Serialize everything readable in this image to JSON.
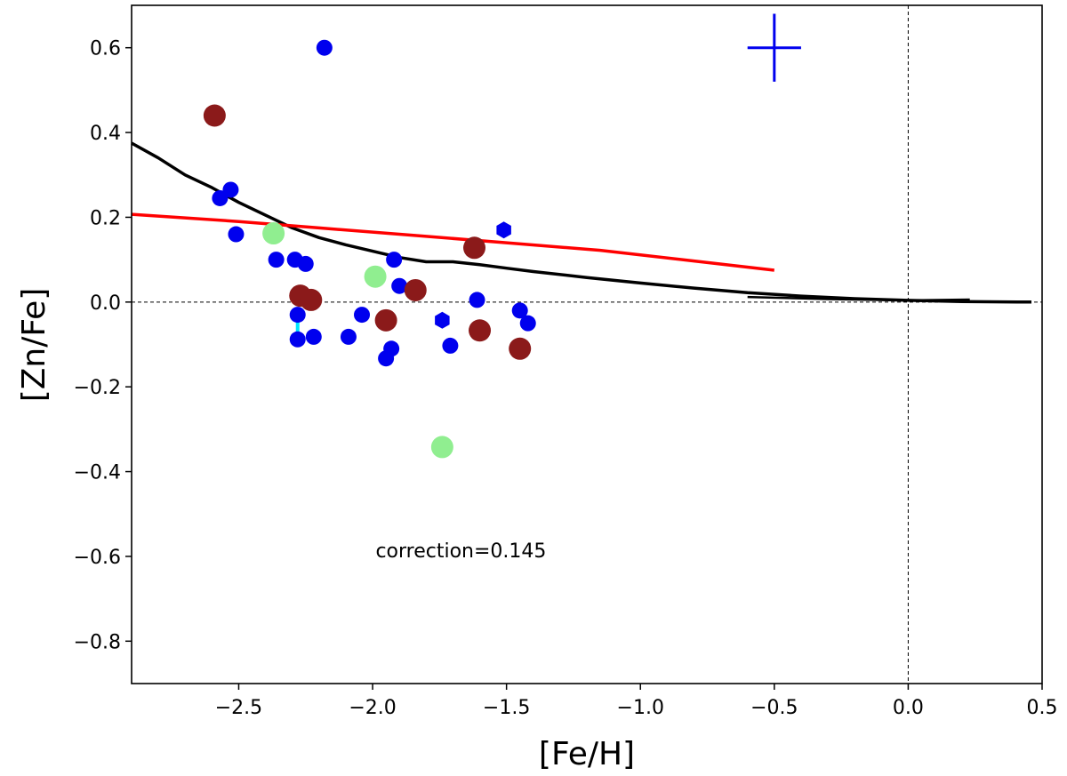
{
  "chart_data": {
    "type": "scatter",
    "xlabel": "[Fe/H]",
    "ylabel": "[Zn/Fe]",
    "xlim": [
      -2.9,
      0.5
    ],
    "ylim": [
      -0.9,
      0.7
    ],
    "xticks": [
      -2.5,
      -2.0,
      -1.5,
      -1.0,
      -0.5,
      0.0,
      0.5
    ],
    "xtick_labels": [
      "−2.5",
      "−2.0",
      "−1.5",
      "−1.0",
      "−0.5",
      "0.0",
      "0.5"
    ],
    "yticks": [
      0.6,
      0.4,
      0.2,
      0.0,
      -0.2,
      -0.4,
      -0.6,
      -0.8
    ],
    "ytick_labels": [
      "0.6",
      "0.4",
      "0.2",
      "0.0",
      "−0.2",
      "−0.4",
      "−0.6",
      "−0.8"
    ],
    "reference_lines": {
      "horizontal_y": 0.0,
      "vertical_x": 0.0,
      "style": "dashed"
    },
    "annotation": {
      "text": "correction=0.145",
      "x": -1.67,
      "y": -0.585
    },
    "colors": {
      "blue": "#0000ee",
      "dark_red": "#8b1a1a",
      "light_green": "#90ee90",
      "cyan": "#00e5ff",
      "model_black": "#000000",
      "model_red": "#ff0000"
    },
    "series": [
      {
        "marker": "circle",
        "color": "#0000ee",
        "points": [
          [
            -2.18,
            0.6
          ],
          [
            -2.57,
            0.245
          ],
          [
            -2.53,
            0.265
          ],
          [
            -2.51,
            0.16
          ],
          [
            -2.36,
            0.1
          ],
          [
            -2.29,
            0.1
          ],
          [
            -2.25,
            0.09
          ],
          [
            -2.28,
            -0.03
          ],
          [
            -2.28,
            -0.088
          ],
          [
            -2.22,
            -0.082
          ],
          [
            -2.09,
            -0.082
          ],
          [
            -2.04,
            -0.03
          ],
          [
            -1.92,
            0.1
          ],
          [
            -1.9,
            0.038
          ],
          [
            -1.95,
            -0.133
          ],
          [
            -1.93,
            -0.11
          ],
          [
            -1.71,
            -0.103
          ],
          [
            -1.61,
            0.005
          ],
          [
            -1.45,
            -0.02
          ],
          [
            -1.42,
            -0.05
          ]
        ]
      },
      {
        "marker": "hexagon",
        "color": "#0000ee",
        "points": [
          [
            -1.51,
            0.17
          ],
          [
            -1.74,
            -0.043
          ]
        ]
      },
      {
        "marker": "circle",
        "color": "#8b1a1a",
        "points": [
          [
            -2.59,
            0.44
          ],
          [
            -2.27,
            0.015
          ],
          [
            -2.23,
            0.005
          ],
          [
            -1.95,
            -0.043
          ],
          [
            -1.84,
            0.028
          ],
          [
            -1.62,
            0.128
          ],
          [
            -1.6,
            -0.067
          ],
          [
            -1.45,
            -0.11
          ]
        ]
      },
      {
        "marker": "circle",
        "color": "#90ee90",
        "points": [
          [
            -2.37,
            0.162
          ],
          [
            -1.99,
            0.06
          ],
          [
            -1.74,
            -0.342
          ]
        ]
      },
      {
        "marker": "segment",
        "color": "#00e5ff",
        "segments": [
          [
            [
              -2.28,
              -0.03
            ],
            [
              -2.28,
              -0.085
            ]
          ],
          [
            [
              -1.95,
              -0.13
            ],
            [
              -1.92,
              -0.11
            ]
          ]
        ]
      },
      {
        "type": "line",
        "color": "#000000",
        "points": [
          [
            -2.9,
            0.375
          ],
          [
            -2.8,
            0.34
          ],
          [
            -2.7,
            0.3
          ],
          [
            -2.6,
            0.27
          ],
          [
            -2.5,
            0.235
          ],
          [
            -2.4,
            0.205
          ],
          [
            -2.3,
            0.175
          ],
          [
            -2.2,
            0.152
          ],
          [
            -2.1,
            0.135
          ],
          [
            -2.0,
            0.12
          ],
          [
            -1.9,
            0.105
          ],
          [
            -1.8,
            0.095
          ],
          [
            -1.75,
            0.095
          ],
          [
            -1.7,
            0.095
          ],
          [
            -1.6,
            0.088
          ],
          [
            -1.5,
            0.08
          ],
          [
            -1.4,
            0.072
          ],
          [
            -1.2,
            0.058
          ],
          [
            -1.0,
            0.045
          ],
          [
            -0.8,
            0.033
          ],
          [
            -0.6,
            0.022
          ],
          [
            -0.4,
            0.014
          ],
          [
            -0.2,
            0.008
          ],
          [
            0.0,
            0.004
          ],
          [
            0.2,
            0.001
          ],
          [
            0.46,
            0.0
          ]
        ]
      },
      {
        "type": "line",
        "color": "#000000",
        "width": "thin",
        "points": [
          [
            -0.6,
            0.012
          ],
          [
            -0.3,
            0.007
          ],
          [
            0.0,
            0.004
          ],
          [
            0.23,
            0.006
          ]
        ]
      },
      {
        "type": "line",
        "color": "#ff0000",
        "points": [
          [
            -2.9,
            0.207
          ],
          [
            -2.5,
            0.19
          ],
          [
            -2.2,
            0.175
          ],
          [
            -1.8,
            0.155
          ],
          [
            -1.5,
            0.14
          ],
          [
            -1.15,
            0.122
          ],
          [
            -0.8,
            0.097
          ],
          [
            -0.5,
            0.075
          ]
        ]
      },
      {
        "type": "errorbar",
        "color": "#0000ee",
        "center": [
          -0.5,
          0.6
        ],
        "xerr": 0.1,
        "yerr": 0.08
      }
    ]
  }
}
